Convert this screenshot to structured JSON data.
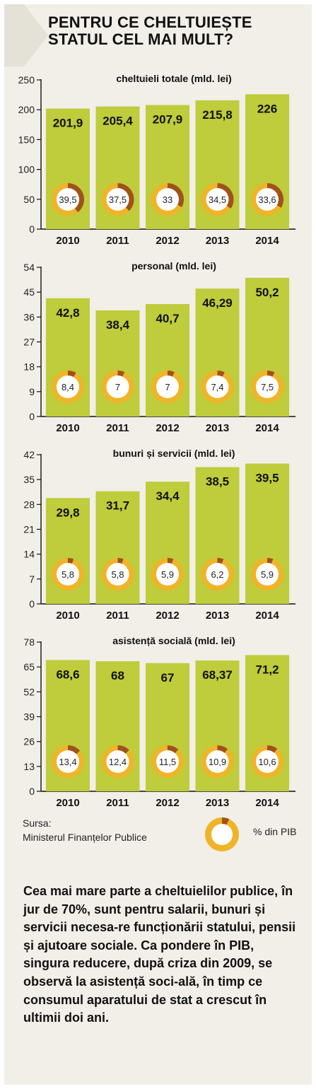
{
  "title": "PENTRU CE CHELTUIEȘTE STATUL CEL MAI MULT?",
  "colors": {
    "bar": "#bfcc3b",
    "ring_main": "#f0b429",
    "ring_accent": "#a0521a",
    "panel": "#f1efe8",
    "header_arrow": "#e4e1d6"
  },
  "chart_data": [
    {
      "type": "bar",
      "title": "cheltuieli totale (mld. lei)",
      "categories": [
        "2010",
        "2011",
        "2012",
        "2013",
        "2014"
      ],
      "values": [
        201.9,
        205.4,
        207.9,
        215.8,
        226
      ],
      "value_labels": [
        "201,9",
        "205,4",
        "207,9",
        "215,8",
        "226"
      ],
      "pct_gdp": [
        39.5,
        37.5,
        33,
        34.5,
        33.6
      ],
      "pct_gdp_labels": [
        "39,5",
        "37,5",
        "33",
        "34,5",
        "33,6"
      ],
      "yticks": [
        "0",
        "50",
        "100",
        "150",
        "200",
        "250"
      ],
      "ylim": [
        0,
        250
      ]
    },
    {
      "type": "bar",
      "title": "personal (mld. lei)",
      "categories": [
        "2010",
        "2011",
        "2012",
        "2013",
        "2014"
      ],
      "values": [
        42.8,
        38.4,
        40.7,
        46.29,
        50.2
      ],
      "value_labels": [
        "42,8",
        "38,4",
        "40,7",
        "46,29",
        "50,2"
      ],
      "pct_gdp": [
        8.4,
        7,
        7,
        7.4,
        7.5
      ],
      "pct_gdp_labels": [
        "8,4",
        "7",
        "7",
        "7,4",
        "7,5"
      ],
      "yticks": [
        "0",
        "9",
        "18",
        "27",
        "36",
        "45",
        "54"
      ],
      "ylim": [
        0,
        54
      ]
    },
    {
      "type": "bar",
      "title": "bunuri și servicii (mld. lei)",
      "categories": [
        "2010",
        "2011",
        "2012",
        "2013",
        "2014"
      ],
      "values": [
        29.8,
        31.7,
        34.4,
        38.5,
        39.5
      ],
      "value_labels": [
        "29,8",
        "31,7",
        "34,4",
        "38,5",
        "39,5"
      ],
      "pct_gdp": [
        5.8,
        5.8,
        5.9,
        6.2,
        5.9
      ],
      "pct_gdp_labels": [
        "5,8",
        "5,8",
        "5,9",
        "6,2",
        "5,9"
      ],
      "yticks": [
        "0",
        "7",
        "14",
        "21",
        "28",
        "35",
        "42"
      ],
      "ylim": [
        0,
        42
      ]
    },
    {
      "type": "bar",
      "title": "asistență socială (mld. lei)",
      "categories": [
        "2010",
        "2011",
        "2012",
        "2013",
        "2014"
      ],
      "values": [
        68.6,
        68,
        67,
        68.37,
        71.2
      ],
      "value_labels": [
        "68,6",
        "68",
        "67",
        "68,37",
        "71,2"
      ],
      "pct_gdp": [
        13.4,
        12.4,
        11.5,
        10.9,
        10.6
      ],
      "pct_gdp_labels": [
        "13,4",
        "12,4",
        "11,5",
        "10,9",
        "10,6"
      ],
      "yticks": [
        "0",
        "13",
        "26",
        "39",
        "52",
        "65",
        "78"
      ],
      "ylim": [
        0,
        78
      ]
    }
  ],
  "legend": {
    "source_label": "Sursa:",
    "source_name": "Ministerul Finanțelor Publice",
    "ring_label": "% din PIB",
    "ring_sample_pct": 7
  },
  "note": "Cea mai mare parte a cheltuielilor publice, în jur de 70%, sunt pentru salarii, bunuri și servicii necesa-re funcționării statului, pensii și ajutoare sociale. Ca pondere în PIB, singura reducere, după criza din 2009, se observă la asistență soci-ală, în timp ce consumul aparatului de stat a crescut în ultimii doi ani."
}
